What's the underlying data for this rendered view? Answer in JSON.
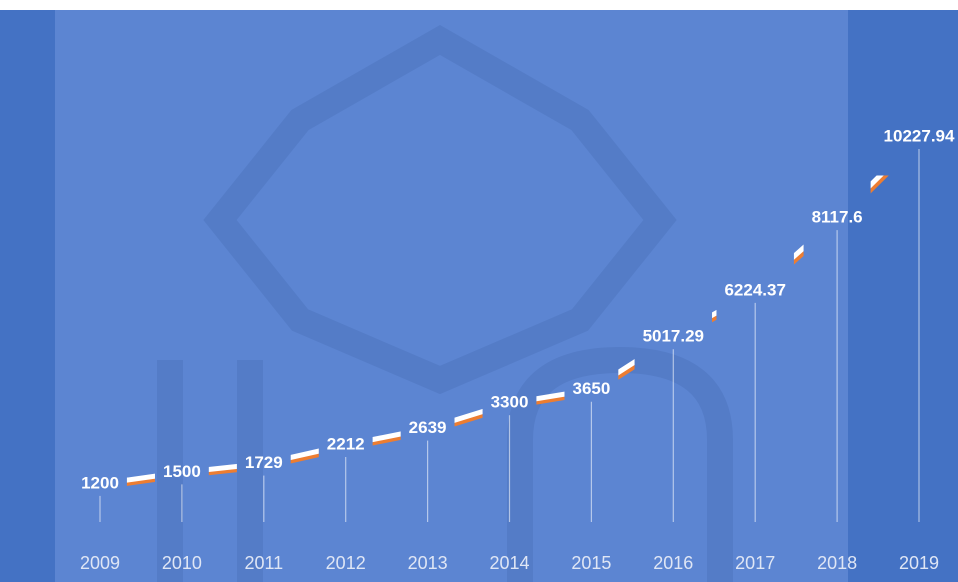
{
  "chart_data": {
    "type": "line",
    "categories": [
      "2009",
      "2010",
      "2011",
      "2012",
      "2013",
      "2014",
      "2015",
      "2016",
      "2017",
      "2018",
      "2019"
    ],
    "values": [
      1200,
      1500,
      1729,
      2212,
      2639,
      3300,
      3650,
      5017.29,
      6224.37,
      8117.6,
      10227.94
    ],
    "color": "#ffffff",
    "shadow_color": "#ed7d31"
  }
}
